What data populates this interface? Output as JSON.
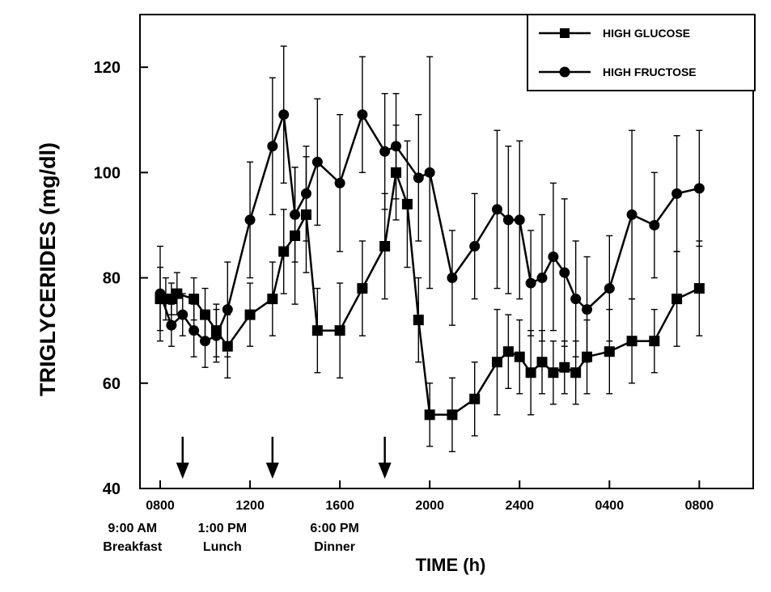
{
  "chart_data": {
    "type": "line",
    "xlabel": "TIME (h)",
    "ylabel": "TRIGLYCERIDES (mg/dl)",
    "ylim": [
      40,
      130
    ],
    "yticks": [
      40,
      60,
      80,
      100,
      120
    ],
    "xlim": [
      7.1,
      34.4
    ],
    "xticks": [
      {
        "x": 8,
        "label": "0800"
      },
      {
        "x": 12,
        "label": "1200"
      },
      {
        "x": 16,
        "label": "1600"
      },
      {
        "x": 20,
        "label": "2000"
      },
      {
        "x": 24,
        "label": "2400"
      },
      {
        "x": 28,
        "label": "0400"
      },
      {
        "x": 32,
        "label": "0800"
      }
    ],
    "meals": [
      {
        "x": 9,
        "time": "9:00 AM",
        "label": "Breakfast"
      },
      {
        "x": 13,
        "time": "1:00 PM",
        "label": "Lunch"
      },
      {
        "x": 18,
        "time": "6:00 PM",
        "label": "Dinner"
      }
    ],
    "legend_position": "top-right",
    "series": [
      {
        "name": "HIGH GLUCOSE",
        "marker": "square",
        "points": [
          {
            "x": 8.0,
            "y": 76,
            "err": 6
          },
          {
            "x": 8.25,
            "y": 76,
            "err": 4
          },
          {
            "x": 8.5,
            "y": 76,
            "err": 3
          },
          {
            "x": 8.75,
            "y": 77,
            "err": 4
          },
          {
            "x": 9.5,
            "y": 76,
            "err": 4
          },
          {
            "x": 10.0,
            "y": 73,
            "err": 5
          },
          {
            "x": 10.5,
            "y": 70,
            "err": 5
          },
          {
            "x": 11.0,
            "y": 67,
            "err": 6
          },
          {
            "x": 12.0,
            "y": 73,
            "err": 6
          },
          {
            "x": 13.0,
            "y": 76,
            "err": 7
          },
          {
            "x": 13.5,
            "y": 85,
            "err": 8
          },
          {
            "x": 14.0,
            "y": 88,
            "err": 13
          },
          {
            "x": 14.5,
            "y": 92,
            "err": 11
          },
          {
            "x": 15.0,
            "y": 70,
            "err": 8
          },
          {
            "x": 16.0,
            "y": 70,
            "err": 9
          },
          {
            "x": 17.0,
            "y": 78,
            "err": 9
          },
          {
            "x": 18.0,
            "y": 86,
            "err": 10
          },
          {
            "x": 18.5,
            "y": 100,
            "err": 9
          },
          {
            "x": 19.0,
            "y": 94,
            "err": 12
          },
          {
            "x": 19.5,
            "y": 72,
            "err": 8
          },
          {
            "x": 20.0,
            "y": 54,
            "err": 6
          },
          {
            "x": 21.0,
            "y": 54,
            "err": 7
          },
          {
            "x": 22.0,
            "y": 57,
            "err": 7
          },
          {
            "x": 23.0,
            "y": 64,
            "err": 10
          },
          {
            "x": 23.5,
            "y": 66,
            "err": 7
          },
          {
            "x": 24.0,
            "y": 65,
            "err": 7
          },
          {
            "x": 24.5,
            "y": 62,
            "err": 8
          },
          {
            "x": 25.0,
            "y": 64,
            "err": 6
          },
          {
            "x": 25.5,
            "y": 62,
            "err": 6
          },
          {
            "x": 26.0,
            "y": 63,
            "err": 5
          },
          {
            "x": 26.5,
            "y": 62,
            "err": 6
          },
          {
            "x": 27.0,
            "y": 65,
            "err": 7
          },
          {
            "x": 28.0,
            "y": 66,
            "err": 8
          },
          {
            "x": 29.0,
            "y": 68,
            "err": 8
          },
          {
            "x": 30.0,
            "y": 68,
            "err": 6
          },
          {
            "x": 31.0,
            "y": 76,
            "err": 9
          },
          {
            "x": 32.0,
            "y": 78,
            "err": 9
          }
        ]
      },
      {
        "name": "HIGH FRUCTOSE",
        "marker": "circle",
        "points": [
          {
            "x": 8.0,
            "y": 77,
            "err": 9
          },
          {
            "x": 8.5,
            "y": 71,
            "err": 4
          },
          {
            "x": 9.0,
            "y": 73,
            "err": 4
          },
          {
            "x": 9.5,
            "y": 70,
            "err": 5
          },
          {
            "x": 10.0,
            "y": 68,
            "err": 5
          },
          {
            "x": 10.5,
            "y": 69,
            "err": 5
          },
          {
            "x": 11.0,
            "y": 74,
            "err": 9
          },
          {
            "x": 12.0,
            "y": 91,
            "err": 11
          },
          {
            "x": 13.0,
            "y": 105,
            "err": 13
          },
          {
            "x": 13.5,
            "y": 111,
            "err": 13
          },
          {
            "x": 14.0,
            "y": 92,
            "err": 9
          },
          {
            "x": 14.5,
            "y": 96,
            "err": 9
          },
          {
            "x": 15.0,
            "y": 102,
            "err": 12
          },
          {
            "x": 16.0,
            "y": 98,
            "err": 13
          },
          {
            "x": 17.0,
            "y": 111,
            "err": 11
          },
          {
            "x": 18.0,
            "y": 104,
            "err": 11
          },
          {
            "x": 18.5,
            "y": 105,
            "err": 10
          },
          {
            "x": 19.5,
            "y": 99,
            "err": 12
          },
          {
            "x": 20.0,
            "y": 100,
            "err": 22
          },
          {
            "x": 21.0,
            "y": 80,
            "err": 9
          },
          {
            "x": 22.0,
            "y": 86,
            "err": 10
          },
          {
            "x": 23.0,
            "y": 93,
            "err": 15
          },
          {
            "x": 23.5,
            "y": 91,
            "err": 14
          },
          {
            "x": 24.0,
            "y": 91,
            "err": 15
          },
          {
            "x": 24.5,
            "y": 79,
            "err": 10
          },
          {
            "x": 25.0,
            "y": 80,
            "err": 12
          },
          {
            "x": 25.5,
            "y": 84,
            "err": 14
          },
          {
            "x": 26.0,
            "y": 81,
            "err": 14
          },
          {
            "x": 26.5,
            "y": 76,
            "err": 11
          },
          {
            "x": 27.0,
            "y": 74,
            "err": 10
          },
          {
            "x": 28.0,
            "y": 78,
            "err": 10
          },
          {
            "x": 29.0,
            "y": 92,
            "err": 16
          },
          {
            "x": 30.0,
            "y": 90,
            "err": 10
          },
          {
            "x": 31.0,
            "y": 96,
            "err": 11
          },
          {
            "x": 32.0,
            "y": 97,
            "err": 11
          }
        ]
      }
    ]
  }
}
